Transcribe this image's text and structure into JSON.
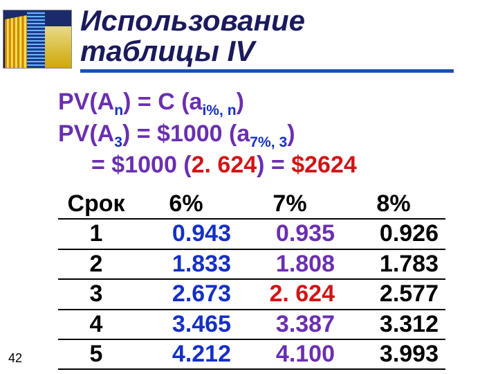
{
  "title_line1": "Использование",
  "title_line2": "таблицы IV",
  "formula": {
    "pv_label": "PV(A",
    "n_sub": "n",
    "three_sub": "3",
    "close_paren": ")",
    "eq1_is": " = C (a",
    "i_n_sub": "i%, n",
    "eq2_is": "  = $1000 (a",
    "seven_three_sub": "7%, 3",
    "eq3_lead": "= $1000 (",
    "factor": "2. 624",
    "eq3_mid": ") = ",
    "result": "$2624"
  },
  "table": {
    "headers": {
      "period": "Срок",
      "c6": "6%",
      "c7": "7%",
      "c8": "8%"
    },
    "rows": [
      {
        "n": "1",
        "c6": "0.943",
        "c7": "0.935",
        "c8": "0.926"
      },
      {
        "n": "2",
        "c6": "1.833",
        "c7": "1.808",
        "c8": "1.783"
      },
      {
        "n": "3",
        "c6": "2.673",
        "c7": "2. 624",
        "c8": "2.577",
        "hl7": true
      },
      {
        "n": "4",
        "c6": "3.465",
        "c7": "3.387",
        "c8": "3.312"
      },
      {
        "n": "5",
        "c6": "4.212",
        "c7": "4.100",
        "c8": "3.993"
      }
    ],
    "colors": {
      "period": "#000000",
      "c6": "#1530c4",
      "c7": "#6a2fb0",
      "c7_highlight": "#d11515",
      "c8": "#000000"
    }
  },
  "page_number": "42",
  "style": {
    "title_color": "#1a1a5c",
    "rule_color": "#1a4fb3",
    "bg": "#ffffff"
  }
}
